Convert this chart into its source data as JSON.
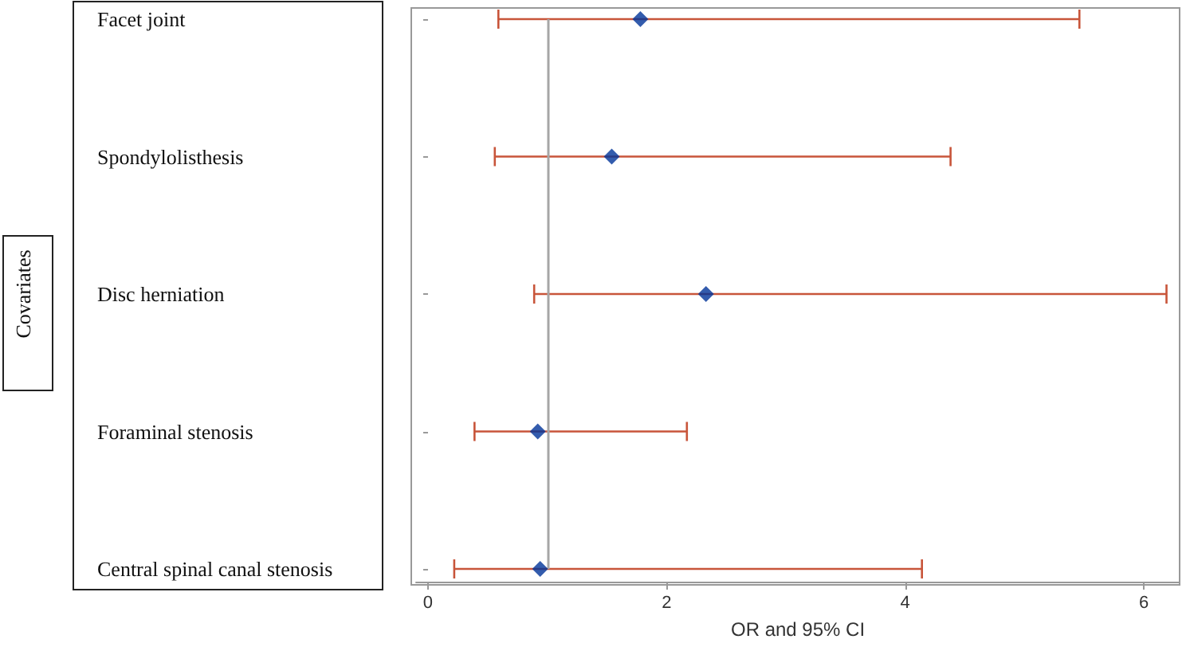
{
  "chart_data": {
    "type": "scatter",
    "orientation": "horizontal",
    "xlabel": "OR and 95% CI",
    "ylabel": "Covariates",
    "categories": [
      "Facet joint",
      "Spondylolisthesis",
      "Disc herniation",
      "Foraminal stenosis",
      "Central spinal canal stenosis"
    ],
    "series": [
      {
        "color": "#003399",
        "values": [
          1.78,
          1.54,
          2.33,
          0.92,
          0.94
        ],
        "errors": [
          [
            0.59,
            5.46
          ],
          [
            0.56,
            4.38
          ],
          [
            0.89,
            6.19
          ],
          [
            0.39,
            2.17
          ],
          [
            0.22,
            4.14
          ]
        ]
      }
    ],
    "xlim": [
      -0.1,
      6.3
    ],
    "xticks": [
      0,
      2,
      4,
      6
    ],
    "ref_lines": [
      {
        "axis": "x",
        "value": 1,
        "color": "#a6a6a6"
      }
    ],
    "marker": "diamond",
    "grid": false
  }
}
